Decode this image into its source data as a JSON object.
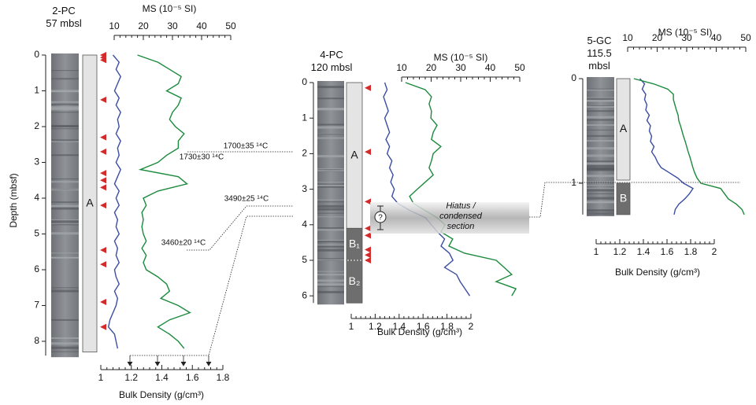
{
  "chart_data": [
    {
      "type": "line",
      "title": "2-PC",
      "subtitle": "57 mbsl",
      "y_label": "Depth (mbsf)",
      "x_label": "Bulk Density (g/cm³)",
      "x2_label": "MS (10⁻⁵ SI)",
      "ylim": [
        0,
        8.4
      ],
      "yticks": [
        0,
        1,
        2,
        3,
        4,
        5,
        6,
        7,
        8
      ],
      "xlim": [
        1,
        1.8
      ],
      "xticks": [
        1,
        1.2,
        1.4,
        1.6,
        1.8
      ],
      "x2lim": [
        10,
        50
      ],
      "x2ticks": [
        10,
        20,
        30,
        40,
        50
      ],
      "depth": [
        0,
        0.2,
        0.4,
        0.6,
        0.8,
        1,
        1.2,
        1.4,
        1.6,
        1.8,
        2,
        2.2,
        2.4,
        2.6,
        2.8,
        3,
        3.2,
        3.4,
        3.6,
        3.8,
        4,
        4.2,
        4.4,
        4.6,
        4.8,
        5,
        5.2,
        5.4,
        5.6,
        5.8,
        6,
        6.2,
        6.4,
        6.6,
        6.8,
        7,
        7.2,
        7.4,
        7.6,
        7.8,
        8,
        8.2
      ],
      "series": [
        {
          "color": "#3a4da3",
          "values": [
            1.08,
            1.12,
            1.1,
            1.13,
            1.11,
            1.09,
            1.12,
            1.1,
            1.13,
            1.11,
            1.12,
            1.1,
            1.13,
            1.11,
            1.12,
            1.1,
            1.13,
            1.11,
            1.09,
            1.12,
            1.1,
            1.12,
            1.09,
            1.11,
            1.1,
            1.12,
            1.09,
            1.11,
            1.1,
            1.12,
            1.09,
            1.1,
            1.12,
            1.09,
            1.11,
            1.1,
            1.08,
            1.06,
            1.05,
            1.09,
            1.1,
            1.11
          ]
        },
        {
          "color": "#1b8a3c",
          "axis": "x2",
          "values": [
            18,
            25,
            29,
            33,
            32,
            28,
            33,
            32,
            30,
            29,
            31,
            34,
            32,
            32,
            28,
            25,
            19,
            32,
            35,
            25,
            20,
            21,
            19.5,
            20,
            19.5,
            20,
            21,
            19.5,
            21,
            20,
            21,
            25,
            28,
            29,
            26,
            32,
            36,
            29,
            25,
            29,
            32,
            34
          ]
        }
      ],
      "units": [
        {
          "label": "A",
          "top": 0,
          "bottom": 8.3,
          "fill": "#e4e4e4"
        }
      ],
      "samples": [
        0,
        0.07,
        0.14,
        1.25,
        2.3,
        2.7,
        3.3,
        3.5,
        3.7,
        4.2,
        5.45,
        5.85,
        6.9,
        7.6
      ],
      "sample_color": "#d42a2a"
    },
    {
      "type": "line",
      "title": "4-PC",
      "subtitle": "120 mbsl",
      "x_label": "Bulk Density (g/cm³)",
      "x2_label": "MS (10⁻⁵ SI)",
      "ylim": [
        0,
        6.2
      ],
      "yticks": [
        0,
        1,
        2,
        3,
        4,
        5,
        6
      ],
      "xlim": [
        1,
        2
      ],
      "xticks": [
        1,
        1.2,
        1.4,
        1.6,
        1.8,
        2
      ],
      "x2lim": [
        10,
        50
      ],
      "x2ticks": [
        10,
        20,
        30,
        40,
        50
      ],
      "depth": [
        0,
        0.2,
        0.4,
        0.6,
        0.8,
        1,
        1.2,
        1.4,
        1.6,
        1.8,
        2,
        2.2,
        2.4,
        2.6,
        2.8,
        3,
        3.2,
        3.4,
        3.6,
        3.8,
        4,
        4.2,
        4.4,
        4.6,
        4.8,
        5,
        5.2,
        5.4,
        5.6,
        5.8,
        6
      ],
      "series": [
        {
          "color": "#3a4da3",
          "values": [
            1.28,
            1.3,
            1.27,
            1.29,
            1.31,
            1.28,
            1.3,
            1.32,
            1.29,
            1.32,
            1.3,
            1.34,
            1.32,
            1.35,
            1.33,
            1.36,
            1.34,
            1.39,
            1.49,
            1.62,
            1.67,
            1.72,
            1.78,
            1.75,
            1.82,
            1.85,
            1.78,
            1.88,
            1.91,
            1.95,
            1.99
          ]
        },
        {
          "color": "#1b8a3c",
          "axis": "x2",
          "values": [
            11.3,
            18,
            20.1,
            19.3,
            20.1,
            19.9,
            22,
            20.7,
            20.1,
            23.3,
            20.7,
            20.1,
            19.3,
            20.7,
            18,
            15.3,
            12.7,
            14,
            18,
            22,
            24.7,
            23.3,
            27.3,
            26,
            31.3,
            42,
            44.7,
            47.3,
            42,
            48.7,
            47.3
          ]
        }
      ],
      "units": [
        {
          "label": "A",
          "top": 0,
          "bottom": 4.1,
          "fill": "#e4e4e4"
        },
        {
          "label": "B₁",
          "top": 4.1,
          "bottom": 5.0,
          "fill": "#6e6e6e"
        },
        {
          "label": "B₂",
          "top": 5.0,
          "bottom": 6.2,
          "fill": "#6e6e6e"
        }
      ],
      "samples": [
        0.15,
        1.95,
        3.35,
        4.1,
        4.3,
        4.7,
        4.85,
        5.0
      ],
      "sample_color": "#d42a2a"
    },
    {
      "type": "line",
      "title": "5-GC",
      "subtitle": "115.5 mbsl",
      "x_label": "Bulk Density (g/cm³)",
      "x2_label": "MS (10⁻⁵ SI)",
      "ylim": [
        0,
        1.3
      ],
      "yticks": [
        0,
        1
      ],
      "xlim": [
        1,
        2
      ],
      "xticks": [
        1,
        1.2,
        1.4,
        1.6,
        1.8,
        2
      ],
      "x2lim": [
        10,
        50
      ],
      "x2ticks": [
        10,
        20,
        30,
        40,
        50
      ],
      "depth": [
        0,
        0.05,
        0.1,
        0.15,
        0.2,
        0.25,
        0.3,
        0.35,
        0.4,
        0.45,
        0.5,
        0.55,
        0.6,
        0.65,
        0.7,
        0.75,
        0.8,
        0.85,
        0.9,
        0.95,
        1,
        1.05,
        1.1,
        1.15,
        1.2,
        1.25,
        1.3
      ],
      "series": [
        {
          "color": "#3a4da3",
          "values": [
            1.37,
            1.41,
            1.39,
            1.42,
            1.41,
            1.43,
            1.42,
            1.45,
            1.43,
            1.46,
            1.45,
            1.47,
            1.46,
            1.49,
            1.47,
            1.5,
            1.52,
            1.55,
            1.62,
            1.69,
            1.74,
            1.82,
            1.79,
            1.75,
            1.7,
            1.67,
            1.66
          ]
        },
        {
          "color": "#1b8a3c",
          "axis": "x2",
          "values": [
            12.1,
            18.8,
            23.6,
            25.5,
            25.5,
            26,
            26.5,
            27.1,
            27.3,
            27.9,
            28.4,
            28.9,
            29.5,
            30,
            30.5,
            31.1,
            31.6,
            32.1,
            32.7,
            33.5,
            34.8,
            41.5,
            42.8,
            44.1,
            46.8,
            48.7,
            49.5
          ]
        }
      ],
      "units": [
        {
          "label": "A",
          "top": 0,
          "bottom": 0.97,
          "fill": "#e4e4e4"
        },
        {
          "label": "B",
          "top": 1.0,
          "bottom": 1.3,
          "fill": "#6e6e6e"
        }
      ],
      "samples": [],
      "sample_color": "#d42a2a"
    }
  ],
  "annotations": [
    "1700±35 ¹⁴C",
    "1730±30 ¹⁴C",
    "3490±25 ¹⁴C",
    "3460±20 ¹⁴C"
  ],
  "hiatus": {
    "label": "Hiatus / condensed section",
    "mark": "?"
  }
}
